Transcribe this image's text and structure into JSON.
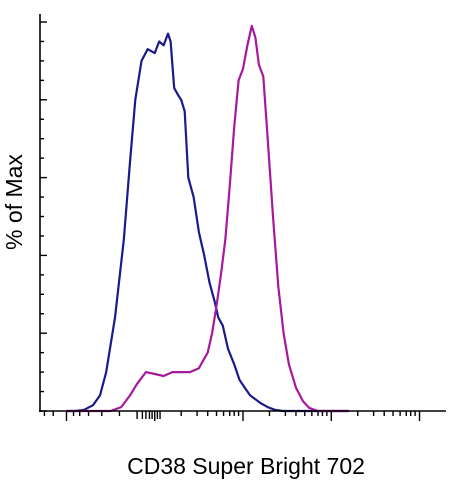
{
  "chart_data": {
    "type": "line",
    "xlabel": "CD38 Super Bright 702",
    "ylabel": "% of Max",
    "ylim": [
      0,
      100
    ],
    "y_major_ticks": [
      0,
      20,
      40,
      60,
      80,
      100
    ],
    "grid": false,
    "series": [
      {
        "color": "#1a1a8c",
        "points": [
          [
            -1.0,
            0
          ],
          [
            -0.9,
            0
          ],
          [
            -0.8,
            0.3
          ],
          [
            -0.7,
            1.5
          ],
          [
            -0.62,
            4
          ],
          [
            -0.55,
            10
          ],
          [
            -0.45,
            24
          ],
          [
            -0.35,
            44
          ],
          [
            -0.28,
            64
          ],
          [
            -0.22,
            80
          ],
          [
            -0.15,
            90
          ],
          [
            -0.08,
            93
          ],
          [
            0.0,
            92
          ],
          [
            0.05,
            95
          ],
          [
            0.1,
            94
          ],
          [
            0.15,
            97
          ],
          [
            0.18,
            95
          ],
          [
            0.22,
            83
          ],
          [
            0.27,
            81
          ],
          [
            0.3,
            80
          ],
          [
            0.34,
            77
          ],
          [
            0.38,
            60
          ],
          [
            0.44,
            55
          ],
          [
            0.5,
            46
          ],
          [
            0.56,
            40
          ],
          [
            0.62,
            33
          ],
          [
            0.68,
            28
          ],
          [
            0.72,
            24
          ],
          [
            0.77,
            22
          ],
          [
            0.83,
            16
          ],
          [
            0.9,
            12
          ],
          [
            0.96,
            8
          ],
          [
            1.02,
            6
          ],
          [
            1.08,
            4
          ],
          [
            1.14,
            3
          ],
          [
            1.2,
            2
          ],
          [
            1.28,
            1
          ],
          [
            1.36,
            0.3
          ],
          [
            1.45,
            0
          ],
          [
            2.2,
            0
          ]
        ]
      },
      {
        "color": "#a6199e",
        "points": [
          [
            -1.0,
            0
          ],
          [
            -0.5,
            0
          ],
          [
            -0.38,
            1
          ],
          [
            -0.28,
            4
          ],
          [
            -0.2,
            7
          ],
          [
            -0.1,
            10
          ],
          [
            0.0,
            9.5
          ],
          [
            0.1,
            9
          ],
          [
            0.2,
            10
          ],
          [
            0.3,
            10
          ],
          [
            0.4,
            10
          ],
          [
            0.5,
            11
          ],
          [
            0.6,
            15
          ],
          [
            0.65,
            20
          ],
          [
            0.7,
            27
          ],
          [
            0.75,
            35
          ],
          [
            0.8,
            44
          ],
          [
            0.85,
            58
          ],
          [
            0.9,
            73
          ],
          [
            0.95,
            85
          ],
          [
            1.0,
            88
          ],
          [
            1.05,
            94
          ],
          [
            1.1,
            99
          ],
          [
            1.14,
            96
          ],
          [
            1.18,
            89
          ],
          [
            1.23,
            86
          ],
          [
            1.28,
            70
          ],
          [
            1.34,
            50
          ],
          [
            1.4,
            32
          ],
          [
            1.46,
            20
          ],
          [
            1.52,
            12
          ],
          [
            1.6,
            6
          ],
          [
            1.68,
            2.5
          ],
          [
            1.75,
            0.8
          ],
          [
            1.85,
            0
          ],
          [
            2.2,
            0
          ]
        ]
      }
    ]
  }
}
